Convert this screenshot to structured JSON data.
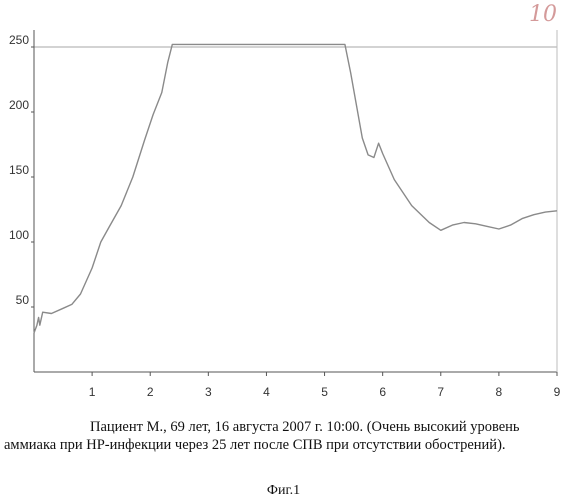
{
  "page_number": "10",
  "caption": "Пациент М., 69 лет, 16 августа 2007 г. 10:00. (Очень высокий уровень аммиака при НР-инфекции через 25 лет после СПВ при отсутствии обострений).",
  "figure_label": "Фиг.1",
  "colors": {
    "line": "#8a8a8a",
    "axis": "#555555",
    "ref_line": "#8a8a8a"
  },
  "chart_data": {
    "type": "line",
    "title": "",
    "xlabel": "",
    "ylabel": "",
    "xlim": [
      0,
      9
    ],
    "ylim": [
      0,
      250
    ],
    "x_ticks": [
      "1",
      "2",
      "3",
      "4",
      "5",
      "6",
      "7",
      "8",
      "9"
    ],
    "y_ticks": [
      "50",
      "100",
      "150",
      "200",
      "250"
    ],
    "reference_line": 250,
    "grid": false,
    "series": [
      {
        "points": [
          [
            0.0,
            30
          ],
          [
            0.05,
            36
          ],
          [
            0.08,
            42
          ],
          [
            0.1,
            36
          ],
          [
            0.15,
            46
          ],
          [
            0.3,
            45
          ],
          [
            0.5,
            49
          ],
          [
            0.65,
            52
          ],
          [
            0.8,
            60
          ],
          [
            1.0,
            80
          ],
          [
            1.15,
            100
          ],
          [
            1.3,
            112
          ],
          [
            1.5,
            128
          ],
          [
            1.7,
            150
          ],
          [
            1.9,
            178
          ],
          [
            2.05,
            198
          ],
          [
            2.2,
            215
          ],
          [
            2.3,
            238
          ],
          [
            2.38,
            252
          ],
          [
            3.0,
            252
          ],
          [
            4.0,
            252
          ],
          [
            5.0,
            252
          ],
          [
            5.35,
            252
          ],
          [
            5.45,
            230
          ],
          [
            5.55,
            205
          ],
          [
            5.65,
            180
          ],
          [
            5.75,
            167
          ],
          [
            5.85,
            165
          ],
          [
            5.93,
            176
          ],
          [
            6.0,
            168
          ],
          [
            6.2,
            148
          ],
          [
            6.5,
            128
          ],
          [
            6.8,
            115
          ],
          [
            7.0,
            109
          ],
          [
            7.2,
            113
          ],
          [
            7.4,
            115
          ],
          [
            7.6,
            114
          ],
          [
            7.8,
            112
          ],
          [
            8.0,
            110
          ],
          [
            8.2,
            113
          ],
          [
            8.4,
            118
          ],
          [
            8.6,
            121
          ],
          [
            8.8,
            123
          ],
          [
            9.0,
            124
          ]
        ]
      }
    ]
  }
}
